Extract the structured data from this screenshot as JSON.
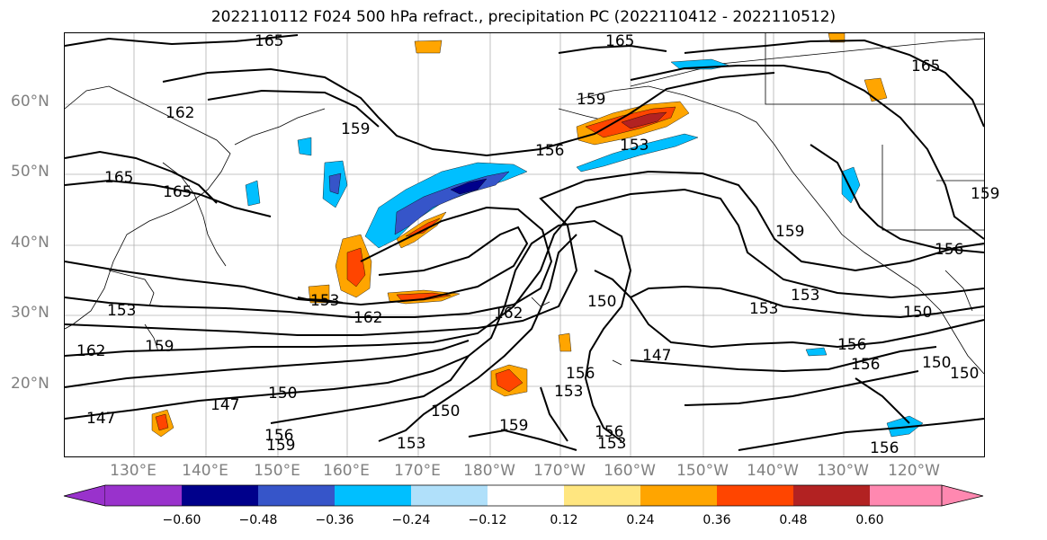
{
  "title": "2022110112 F024 500 hPa refract., precipitation PC (2022110412 - 2022110512)",
  "lat_labels": [
    "60°N",
    "50°N",
    "40°N",
    "30°N",
    "20°N"
  ],
  "lon_labels": [
    "130°E",
    "140°E",
    "150°E",
    "160°E",
    "170°E",
    "180°W",
    "170°W",
    "160°W",
    "150°W",
    "140°W",
    "130°W",
    "120°W"
  ],
  "contour_labels": [
    "165",
    "165",
    "165",
    "162",
    "159",
    "165",
    "165",
    "156",
    "153",
    "159",
    "159",
    "156",
    "153",
    "153",
    "150",
    "162",
    "162",
    "162",
    "159",
    "153",
    "150",
    "147",
    "150",
    "150",
    "159",
    "159",
    "156",
    "153",
    "147",
    "156",
    "156",
    "156",
    "150",
    "153",
    "156",
    "147",
    "153",
    "153",
    "150",
    "159",
    "156"
  ],
  "colorbar": {
    "ticks": [
      "−0.60",
      "−0.48",
      "−0.36",
      "−0.24",
      "−0.12",
      "0.12",
      "0.24",
      "0.36",
      "0.48",
      "0.60"
    ],
    "colors": [
      "#9932cc",
      "#00008b",
      "#3655c9",
      "#00bfff",
      "#b0e0fa",
      "#ffffff",
      "#ffe680",
      "#ffa500",
      "#ff4500",
      "#b22222",
      "#ff88b0"
    ]
  }
}
